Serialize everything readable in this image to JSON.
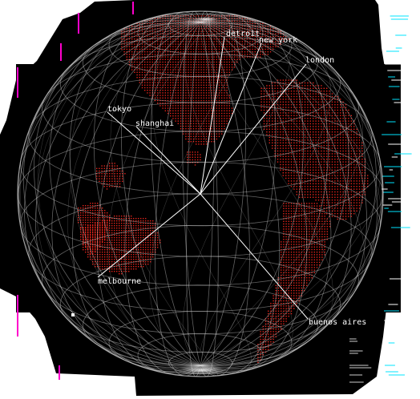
{
  "scene": {
    "background_color": "#000000",
    "land_color": "#e2231a",
    "wireframe_color": "#d8d8d8",
    "pointer_color": "#ffffff",
    "accent_artifact_colors": [
      "#ff00cc",
      "#00e5ff"
    ]
  },
  "cities": [
    {
      "id": "detroit",
      "label": "detroit"
    },
    {
      "id": "new-york",
      "label": "new york"
    },
    {
      "id": "london",
      "label": "london"
    },
    {
      "id": "tokyo",
      "label": "tokyo"
    },
    {
      "id": "shanghai",
      "label": "shanghai"
    },
    {
      "id": "melbourne",
      "label": "melbourne"
    },
    {
      "id": "buenos-aires",
      "label": "buenos aires"
    }
  ]
}
